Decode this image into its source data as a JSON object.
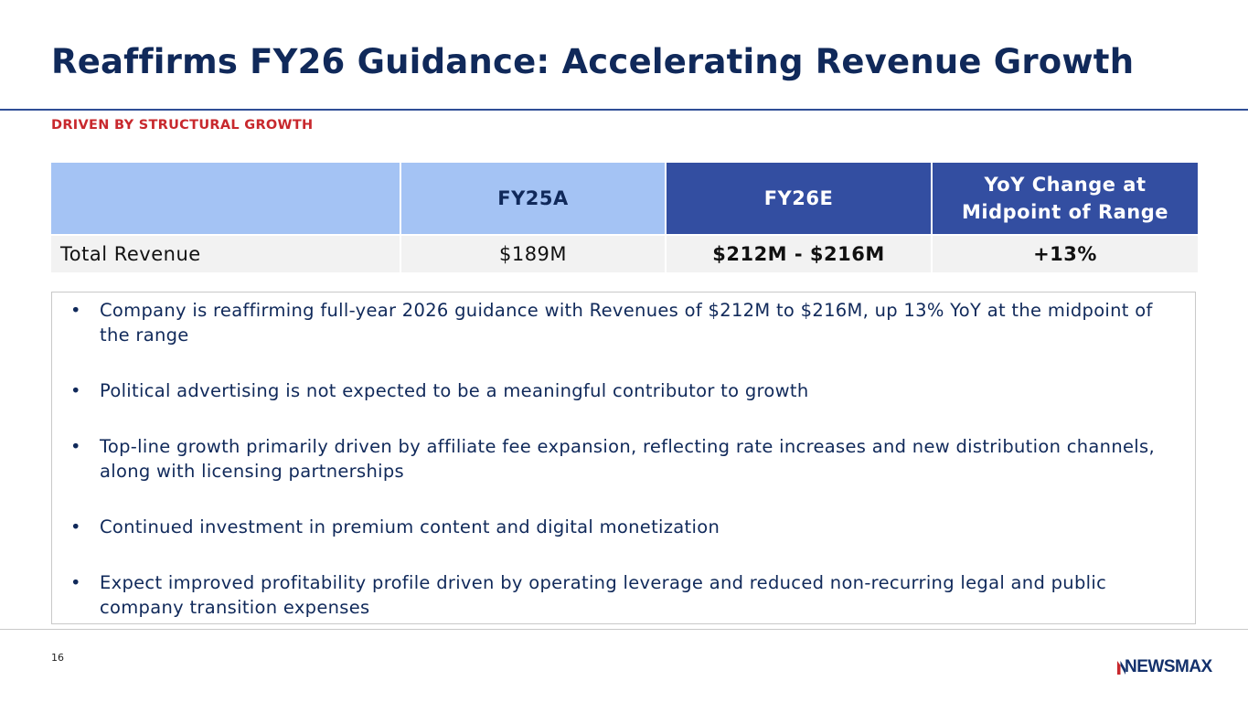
{
  "slide": {
    "title": "Reaffirms FY26 Guidance: Accelerating Revenue Growth",
    "subtitle": "DRIVEN BY STRUCTURAL GROWTH",
    "page_number": "16"
  },
  "table": {
    "headers": [
      "",
      "FY25A",
      "FY26E",
      "YoY Change at Midpoint of Range"
    ],
    "rows": [
      {
        "label": "Total Revenue",
        "fy25a": "$189M",
        "fy26e": "$212M - $216M",
        "yoy": "+13%"
      }
    ]
  },
  "bullets": [
    "Company is reaffirming full-year 2026 guidance with Revenues of $212M to $216M, up 13% YoY at the midpoint of the range",
    "Political advertising is not expected to be a meaningful contributor to growth",
    "Top-line growth primarily driven by affiliate fee expansion, reflecting rate increases and new distribution channels, along with licensing partnerships",
    "Continued investment in premium content and digital monetization",
    "Expect improved profitability profile driven by operating leverage and reduced non-recurring legal and public company transition expenses"
  ],
  "bullet_marker": "•",
  "logo": {
    "text": "NEWSMAX",
    "icon": "newsmax-n-mark-icon",
    "colors": {
      "navy": "#13306b",
      "red": "#c8282d"
    }
  },
  "colors": {
    "title": "#10295a",
    "subtitle": "#c8282d",
    "header_light": "#a4c3f4",
    "header_dark": "#334ea1",
    "row_background": "#f2f2f2"
  }
}
